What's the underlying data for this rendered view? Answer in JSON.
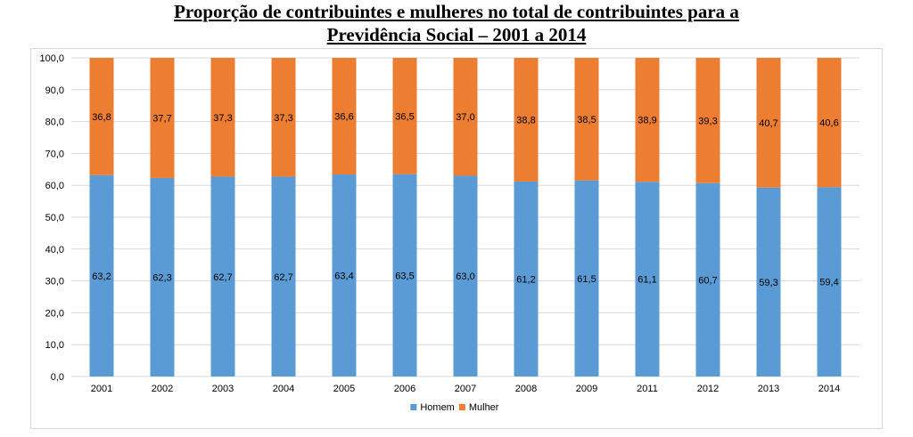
{
  "chart_data": {
    "type": "bar",
    "stacked": true,
    "title_lines": [
      "Proporção de contribuintes e mulheres no total de contribuintes para a",
      "Previdência Social – 2001 a 2014"
    ],
    "categories": [
      "2001",
      "2002",
      "2003",
      "2004",
      "2005",
      "2006",
      "2007",
      "2008",
      "2009",
      "2011",
      "2012",
      "2013",
      "2014"
    ],
    "series": [
      {
        "name": "Homem",
        "color": "#5b9bd5",
        "values": [
          63.2,
          62.3,
          62.7,
          62.7,
          63.4,
          63.5,
          63.0,
          61.2,
          61.5,
          61.1,
          60.7,
          59.3,
          59.4
        ],
        "labels": [
          "63,2",
          "62,3",
          "62,7",
          "62,7",
          "63,4",
          "63,5",
          "63,0",
          "61,2",
          "61,5",
          "61,1",
          "60,7",
          "59,3",
          "59,4"
        ]
      },
      {
        "name": "Mulher",
        "color": "#ed7d31",
        "values": [
          36.8,
          37.7,
          37.3,
          37.3,
          36.6,
          36.5,
          37.0,
          38.8,
          38.5,
          38.9,
          39.3,
          40.7,
          40.6
        ],
        "labels": [
          "36,8",
          "37,7",
          "37,3",
          "37,3",
          "36,6",
          "36,5",
          "37,0",
          "38,8",
          "38,5",
          "38,9",
          "39,3",
          "40,7",
          "40,6"
        ]
      }
    ],
    "ylim": [
      0,
      100
    ],
    "yticks": [
      0,
      10,
      20,
      30,
      40,
      50,
      60,
      70,
      80,
      90,
      100
    ],
    "ytick_labels": [
      "0,0",
      "10,0",
      "20,0",
      "30,0",
      "40,0",
      "50,0",
      "60,0",
      "70,0",
      "80,0",
      "90,0",
      "100,0"
    ],
    "grid": true,
    "legend_position": "bottom",
    "xlabel": "",
    "ylabel": ""
  }
}
